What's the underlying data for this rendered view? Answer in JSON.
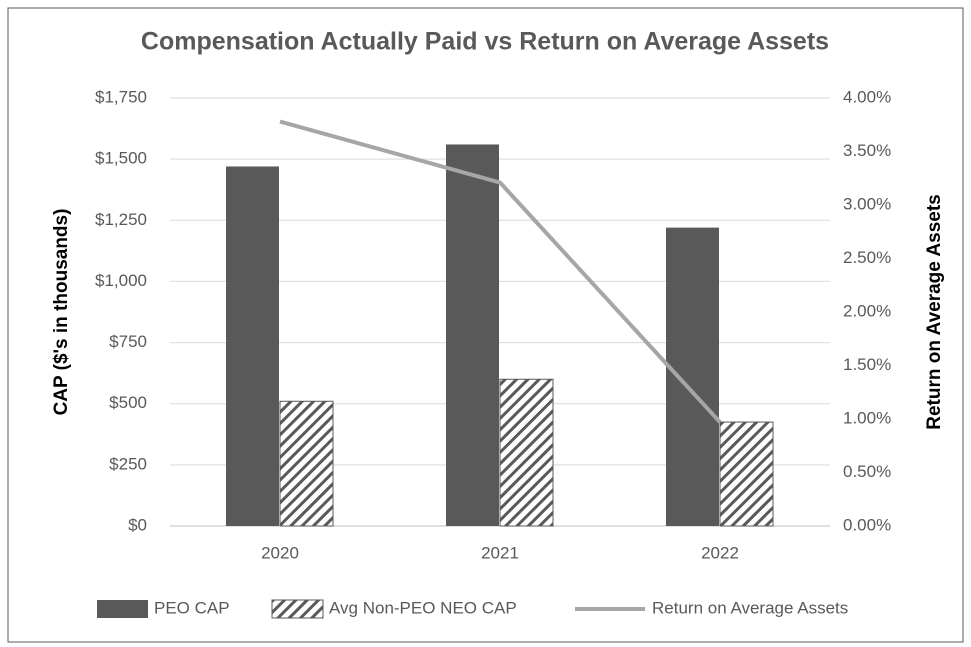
{
  "chart_data": {
    "type": "bar",
    "title": "Compensation Actually Paid vs Return on Average Assets",
    "ylabel": "CAP ($'s in thousands)",
    "y2label": "Return on Average Assets",
    "categories": [
      "2020",
      "2021",
      "2022"
    ],
    "series": [
      {
        "name": "PEO CAP",
        "type": "bar",
        "color": "#595959",
        "values": [
          1470,
          1560,
          1220
        ]
      },
      {
        "name": "Avg Non-PEO NEO CAP",
        "type": "bar",
        "color": "#595959",
        "hatch": true,
        "values": [
          510,
          600,
          425
        ]
      },
      {
        "name": "Return on Average Assets",
        "type": "line",
        "axis": "y2",
        "color": "#a6a6a6",
        "values": [
          3.78,
          3.21,
          0.97
        ]
      }
    ],
    "ylim": [
      0,
      1750
    ],
    "yticks": [
      {
        "value": 0,
        "label": "$0"
      },
      {
        "value": 250,
        "label": "$250"
      },
      {
        "value": 500,
        "label": "$500"
      },
      {
        "value": 750,
        "label": "$750"
      },
      {
        "value": 1000,
        "label": "$1,000"
      },
      {
        "value": 1250,
        "label": "$1,250"
      },
      {
        "value": 1500,
        "label": "$1,500"
      },
      {
        "value": 1750,
        "label": "$1,750"
      }
    ],
    "y2lim": [
      0,
      4
    ],
    "y2ticks": [
      {
        "value": 0,
        "label": "0.00%"
      },
      {
        "value": 0.5,
        "label": "0.50%"
      },
      {
        "value": 1,
        "label": "1.00%"
      },
      {
        "value": 1.5,
        "label": "1.50%"
      },
      {
        "value": 2,
        "label": "2.00%"
      },
      {
        "value": 2.5,
        "label": "2.50%"
      },
      {
        "value": 3,
        "label": "3.00%"
      },
      {
        "value": 3.5,
        "label": "3.50%"
      },
      {
        "value": 4,
        "label": "4.00%"
      }
    ],
    "grid": true,
    "legend": "bottom"
  }
}
